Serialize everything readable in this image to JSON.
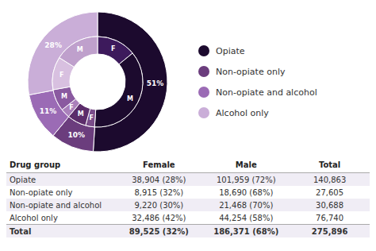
{
  "chart_data": {
    "type": "pie",
    "categories": [
      "Opiate",
      "Non-opiate only",
      "Non-opiate and alcohol",
      "Alcohol only"
    ],
    "values": [
      51,
      10,
      11,
      28
    ],
    "value_labels": [
      "51%",
      "10%",
      "11%",
      "28%"
    ],
    "colors": [
      "#1c0a2e",
      "#6b3d7d",
      "#9b6bb5",
      "#caaed8"
    ],
    "data_labels": true,
    "legend": "right",
    "inner_ring": {
      "categories": [
        "F",
        "M",
        "F",
        "M",
        "F",
        "M",
        "F",
        "M"
      ],
      "values": [
        38904,
        101959,
        8915,
        18690,
        9220,
        21468,
        32486,
        44254
      ],
      "colors": [
        "#3d1a5c",
        "#1c0a2e",
        "#7a4d8a",
        "#5c2d6b",
        "#aa80bb",
        "#8a5aa0",
        "#d8c0e0",
        "#bfa0cc"
      ]
    },
    "table": {
      "headers": [
        "Drug group",
        "Female",
        "Male",
        "Total"
      ],
      "rows": [
        [
          "Opiate",
          "38,904 (28%)",
          "101,959 (72%)",
          "140,863"
        ],
        [
          "Non-opiate only",
          "8,915 (32%)",
          "18,690 (68%)",
          "27,605"
        ],
        [
          "Non-opiate and alcohol",
          "9,220 (30%)",
          "21,468 (70%)",
          "30,688"
        ],
        [
          "Alcohol only",
          "32,486 (42%)",
          "44,254 (58%)",
          "76,740"
        ],
        [
          "Total",
          "89,525 (32%)",
          "186,371 (68%)",
          "275,896"
        ]
      ]
    }
  }
}
